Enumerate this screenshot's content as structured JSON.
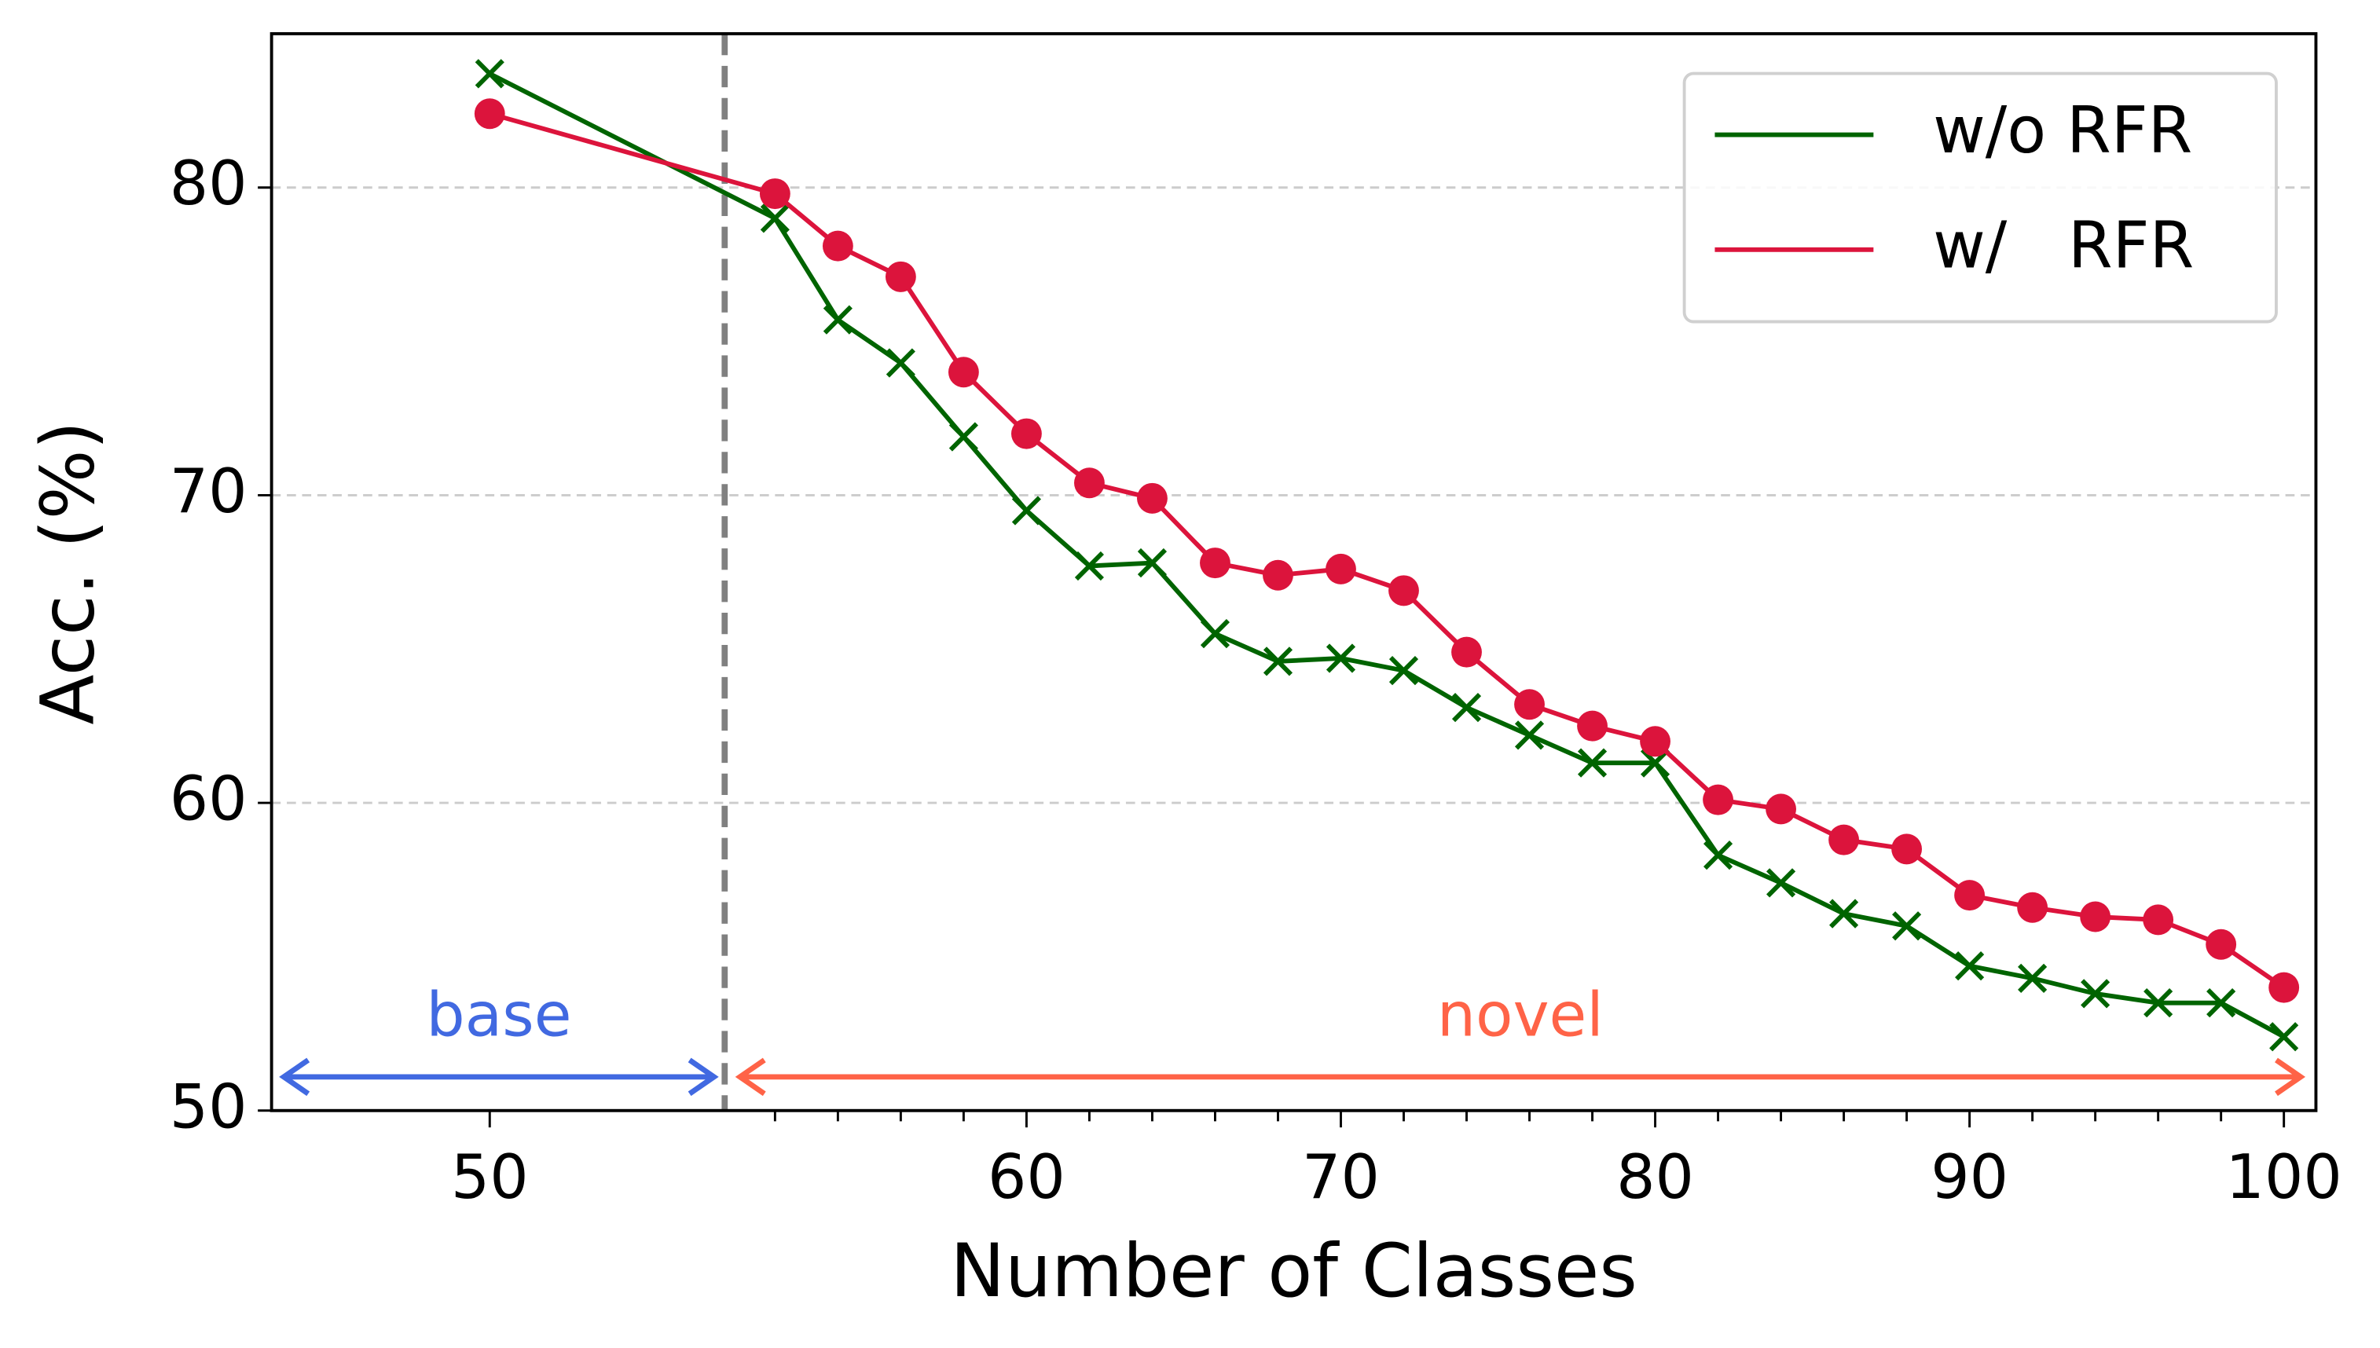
{
  "chart_data": {
    "type": "line",
    "xlabel": "Number of Classes",
    "ylabel": "Acc. (%)",
    "categories": [
      "50",
      null,
      null,
      null,
      null,
      "60",
      null,
      null,
      null,
      null,
      "70",
      null,
      null,
      null,
      null,
      "80",
      null,
      null,
      null,
      null,
      "90",
      null,
      null,
      null,
      null,
      "100"
    ],
    "series": [
      {
        "name": "w/o RFR",
        "color": "#006400",
        "marker": "x",
        "values": [
          83.7,
          79.0,
          75.7,
          74.3,
          71.9,
          69.5,
          67.7,
          67.8,
          65.5,
          64.6,
          64.7,
          64.3,
          63.1,
          62.2,
          61.3,
          61.3,
          58.3,
          57.4,
          56.4,
          56.0,
          54.7,
          54.3,
          53.8,
          53.5,
          53.5,
          52.4
        ]
      },
      {
        "name": "w/   RFR",
        "color": "#dc143c",
        "marker": "o",
        "values": [
          82.4,
          79.8,
          78.1,
          77.1,
          74.0,
          72.0,
          70.4,
          69.9,
          67.8,
          67.4,
          67.6,
          66.9,
          64.9,
          63.2,
          62.5,
          62.0,
          60.1,
          59.8,
          58.8,
          58.5,
          57.0,
          56.6,
          56.3,
          56.2,
          55.4,
          54.0
        ]
      }
    ],
    "ylim": [
      50,
      85
    ],
    "yticks": [
      50,
      60,
      70,
      80
    ],
    "grid": true,
    "legend": "upper right",
    "annotations": [
      {
        "text": "base",
        "color": "#4169e1"
      },
      {
        "text": "novel",
        "color": "#ff6347"
      }
    ]
  }
}
